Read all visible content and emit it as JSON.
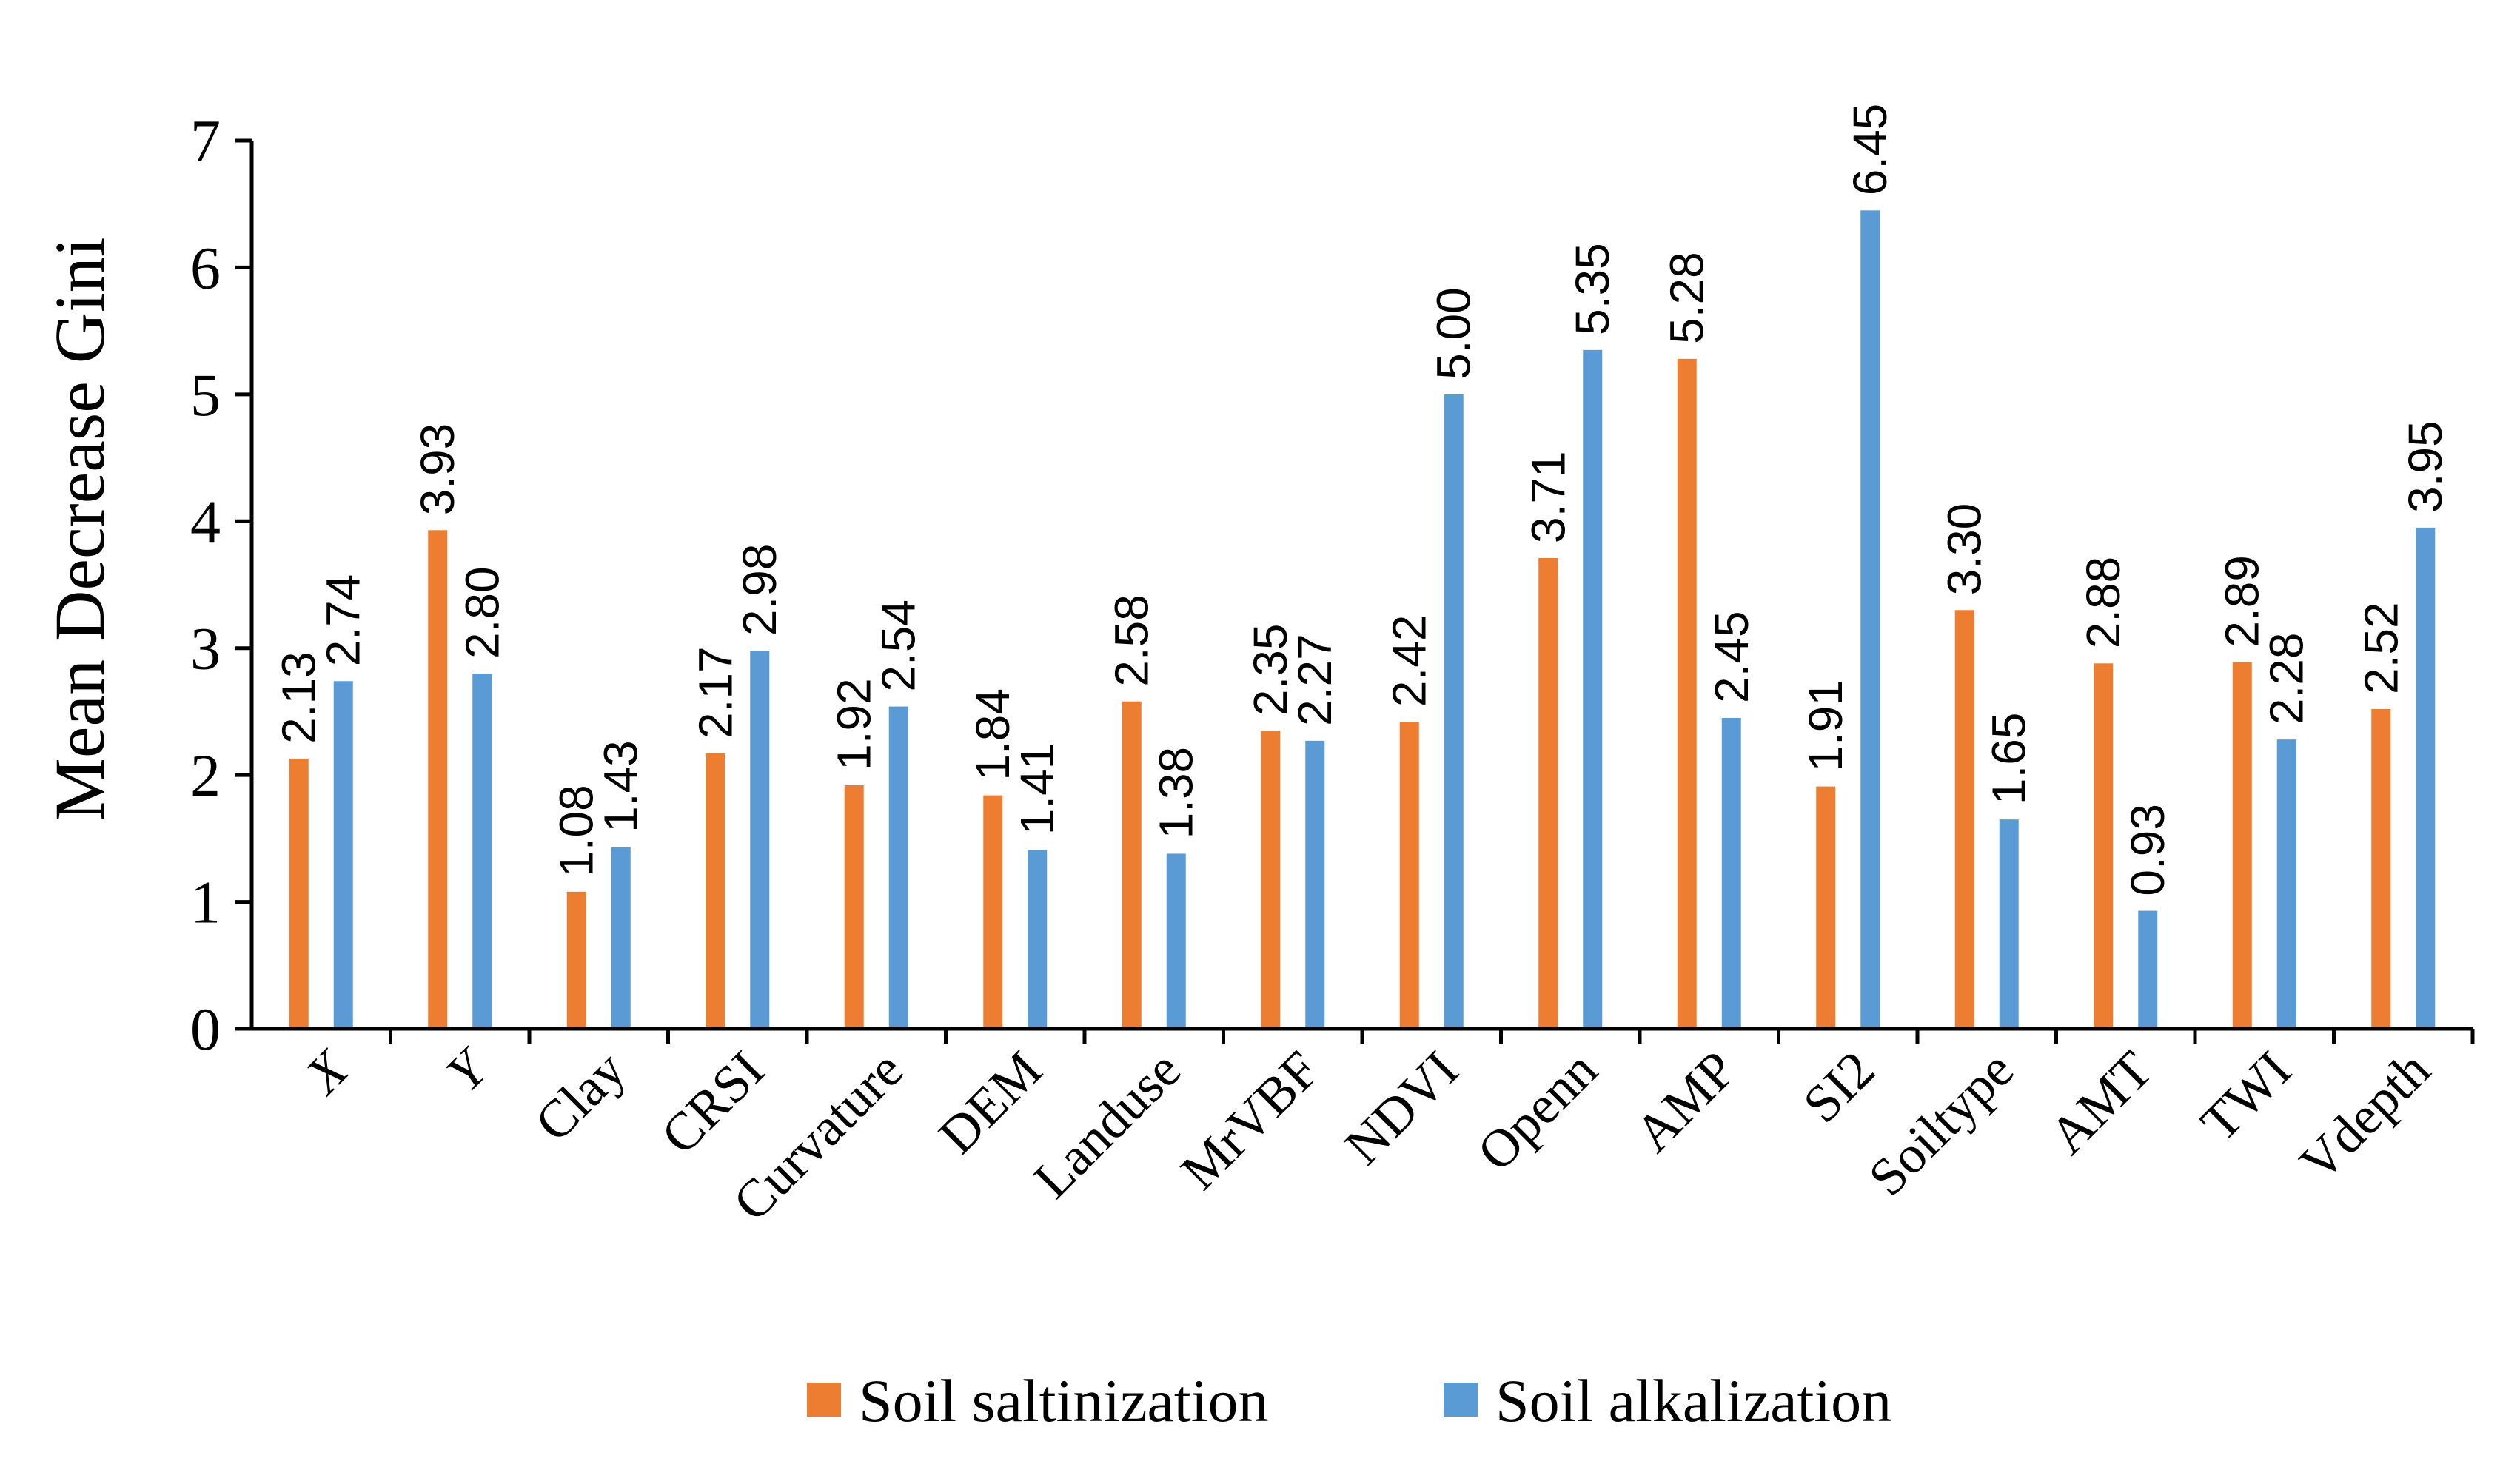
{
  "chart_data": {
    "type": "bar",
    "title": "",
    "xlabel": "",
    "ylabel": "Mean Decrease Gini",
    "ylim": [
      0,
      7
    ],
    "yticks": [
      0,
      1,
      2,
      3,
      4,
      5,
      6,
      7
    ],
    "categories": [
      "X",
      "Y",
      "Clay",
      "CRSI",
      "Curvature",
      "DEM",
      "Landuse",
      "MrVBF",
      "NDVI",
      "Openn",
      "AMP",
      "SI2",
      "Soiltype",
      "AMT",
      "TWI",
      "Vdepth"
    ],
    "series": [
      {
        "name": "Soil saltinization",
        "color": "#ED7D31",
        "values": [
          2.13,
          3.93,
          1.08,
          2.17,
          1.92,
          1.84,
          2.58,
          2.35,
          2.42,
          3.71,
          5.28,
          1.91,
          3.3,
          2.88,
          2.89,
          2.52
        ],
        "labels": [
          "2.13",
          "3.93",
          "1.08",
          "2.17",
          "1.92",
          "1.84",
          "2.58",
          "2.35",
          "2.42",
          "3.71",
          "5.28",
          "1.91",
          "3.30",
          "2.88",
          "2.89",
          "2.52"
        ]
      },
      {
        "name": "Soil alkalization",
        "color": "#5B9BD5",
        "values": [
          2.74,
          2.8,
          1.43,
          2.98,
          2.54,
          1.41,
          1.38,
          2.27,
          5.0,
          5.35,
          2.45,
          6.45,
          1.65,
          0.93,
          2.28,
          3.95
        ],
        "labels": [
          "2.74",
          "2.80",
          "1.43",
          "2.98",
          "2.54",
          "1.41",
          "1.38",
          "2.27",
          "5.00",
          "5.35",
          "2.45",
          "6.45",
          "1.65",
          "0.93",
          "2.28",
          "3.95"
        ]
      }
    ],
    "legend": "bottom",
    "grid": false
  }
}
